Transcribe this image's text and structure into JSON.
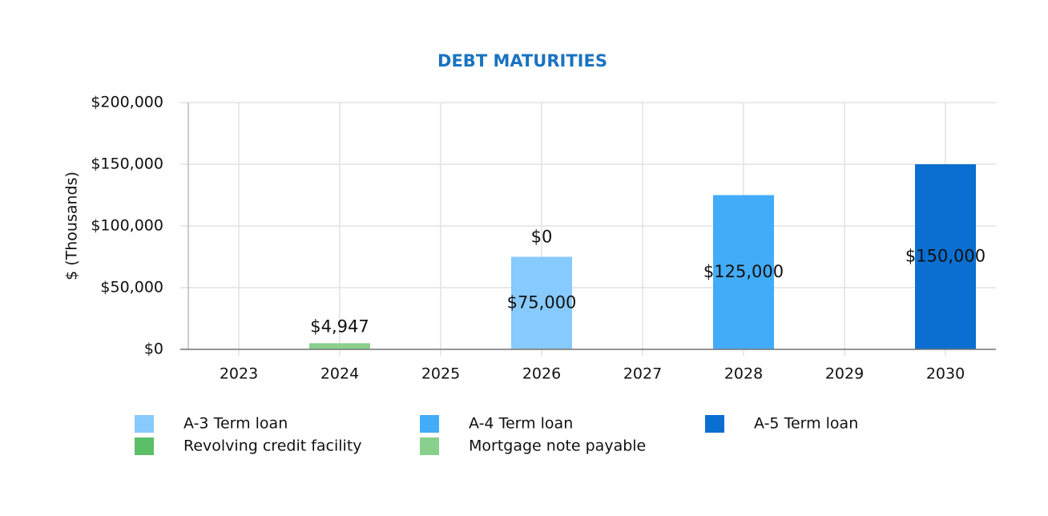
{
  "chart_data": {
    "type": "stacked_bar",
    "title": "DEBT MATURITIES",
    "y_label": "$ (Thousands)",
    "categories": [
      "2023",
      "2024",
      "2025",
      "2026",
      "2027",
      "2028",
      "2029",
      "2030"
    ],
    "series": [
      {
        "name": "A-3 Term loan",
        "color": "#87cafd",
        "values": [
          null,
          null,
          null,
          75000,
          null,
          null,
          null,
          null
        ],
        "value_labels": [
          null,
          null,
          null,
          "$75,000",
          null,
          null,
          null,
          null
        ]
      },
      {
        "name": "A-4 Term loan",
        "color": "#42acf8",
        "values": [
          null,
          null,
          null,
          null,
          null,
          125000,
          null,
          null
        ],
        "value_labels": [
          null,
          null,
          null,
          null,
          null,
          "$125,000",
          null,
          null
        ]
      },
      {
        "name": "A-5 Term loan",
        "color": "#0a6fd0",
        "values": [
          null,
          null,
          null,
          null,
          null,
          null,
          null,
          150000
        ],
        "value_labels": [
          null,
          null,
          null,
          null,
          null,
          null,
          null,
          "$150,000"
        ]
      },
      {
        "name": "Revolving credit facility",
        "color": "#5dbe68",
        "values": [
          null,
          null,
          null,
          0,
          null,
          null,
          null,
          null
        ],
        "value_labels": [
          null,
          null,
          null,
          "$0",
          null,
          null,
          null,
          null
        ]
      },
      {
        "name": "Mortgage note payable",
        "color": "#8ad08d",
        "values": [
          null,
          4947,
          null,
          null,
          null,
          null,
          null,
          null
        ],
        "value_labels": [
          null,
          "$4,947",
          null,
          null,
          null,
          null,
          null,
          null
        ]
      }
    ],
    "ylim": [
      0,
      200000
    ],
    "yticks": [
      {
        "value": 0,
        "label": "$0"
      },
      {
        "value": 50000,
        "label": "$50,000"
      },
      {
        "value": 100000,
        "label": "$100,000"
      },
      {
        "value": 150000,
        "label": "$150,000"
      },
      {
        "value": 200000,
        "label": "$200,000"
      }
    ],
    "grid": true
  }
}
